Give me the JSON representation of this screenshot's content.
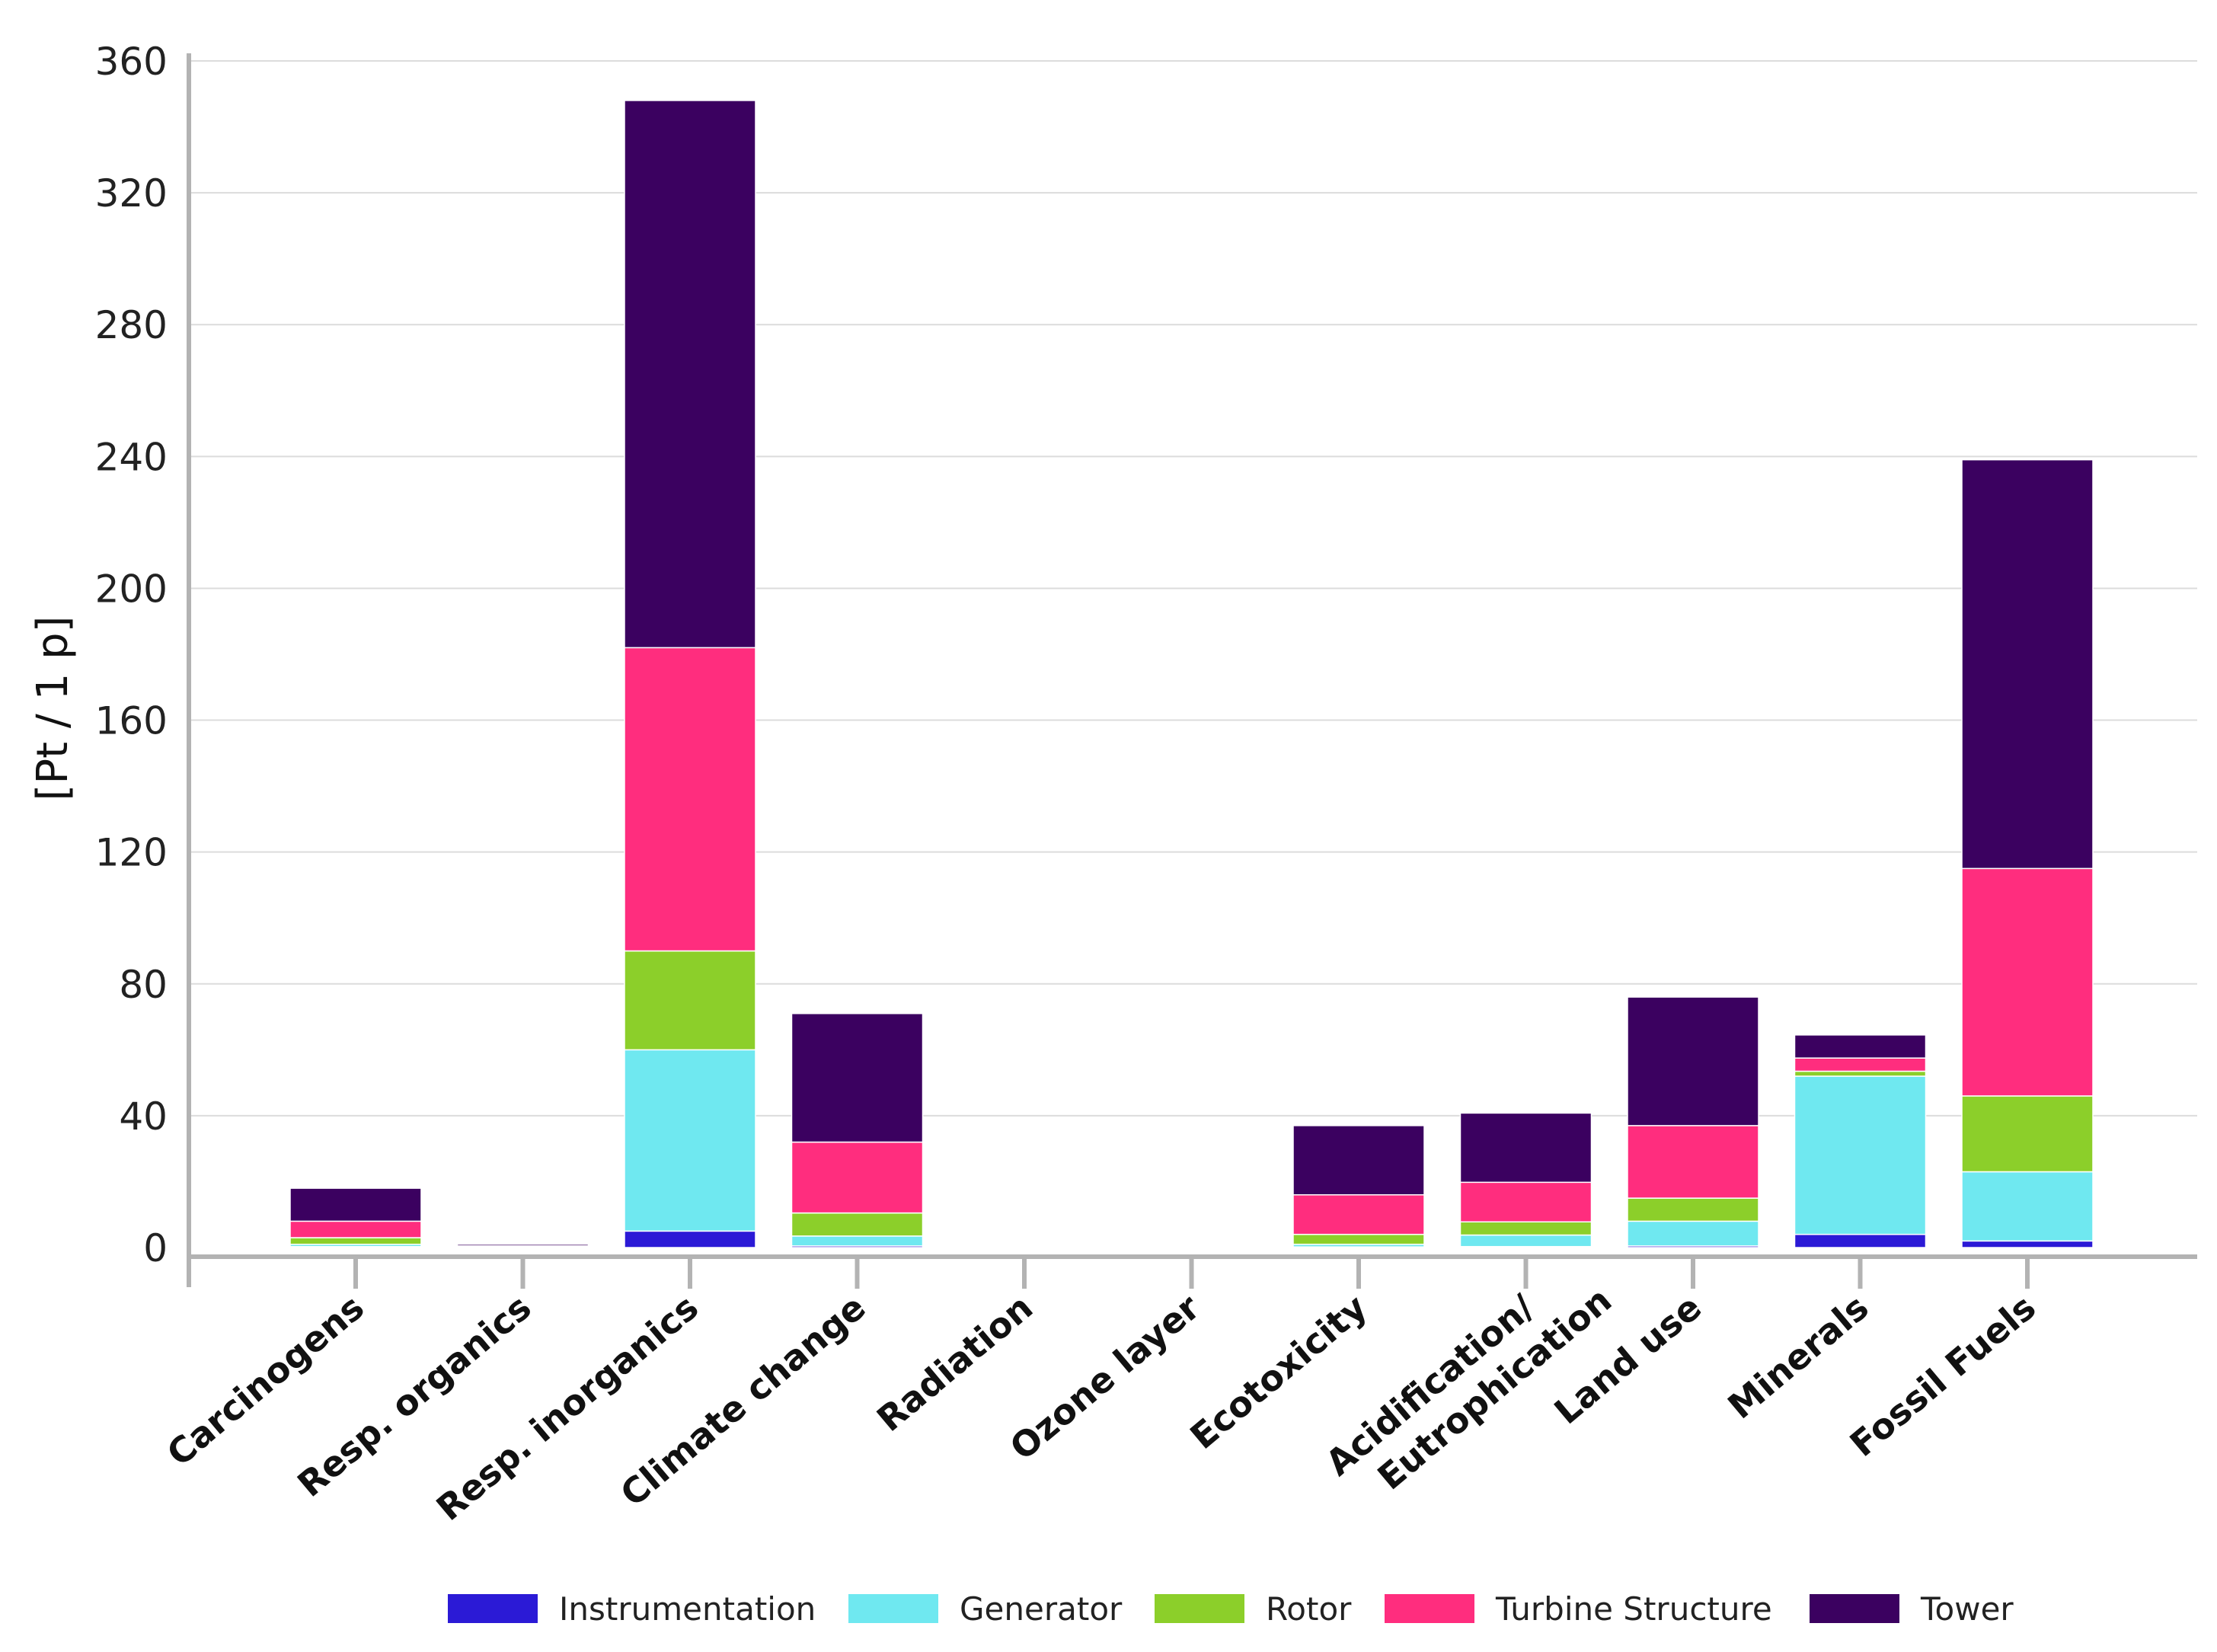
{
  "chart_data": {
    "type": "bar",
    "stacked": true,
    "title": "",
    "xlabel": "",
    "ylabel": "[Pt / 1 p]",
    "ylim": [
      0,
      360
    ],
    "yticks": [
      "0",
      "40",
      "80",
      "120",
      "160",
      "200",
      "240",
      "280",
      "320",
      "360"
    ],
    "grid": true,
    "legend_position": "bottom",
    "categories": [
      [
        "Carcinogens"
      ],
      [
        "Resp. organics"
      ],
      [
        "Resp. inorganics"
      ],
      [
        "Climate change"
      ],
      [
        "Radiation"
      ],
      [
        "Ozone layer"
      ],
      [
        "Ecotoxicity"
      ],
      [
        "Acidification/",
        "Eutrophication"
      ],
      [
        "Land use"
      ],
      [
        "Minerals"
      ],
      [
        "Fossil Fuels"
      ]
    ],
    "series": [
      {
        "name": "Instrumentation",
        "color": "#2b1ad6",
        "values": [
          0.3,
          0,
          5,
          0.5,
          0,
          0,
          0.2,
          0.3,
          0.5,
          4,
          2
        ]
      },
      {
        "name": "Generator",
        "color": "#6fe8f0",
        "values": [
          0.7,
          0,
          55,
          3,
          0,
          0,
          0.8,
          3.5,
          7.5,
          48,
          21
        ]
      },
      {
        "name": "Rotor",
        "color": "#8ccf2a",
        "values": [
          2,
          0.2,
          30,
          7,
          0.1,
          0,
          3,
          4,
          7,
          1.5,
          23
        ]
      },
      {
        "name": "Turbine Structure",
        "color": "#ff2d7e",
        "values": [
          5,
          0.3,
          92,
          21.5,
          0.2,
          0.1,
          12,
          12,
          22,
          4,
          69
        ]
      },
      {
        "name": "Tower",
        "color": "#3b0160",
        "values": [
          10,
          0.5,
          166,
          39,
          0.2,
          0.2,
          21,
          21,
          39,
          7,
          124
        ]
      }
    ]
  }
}
